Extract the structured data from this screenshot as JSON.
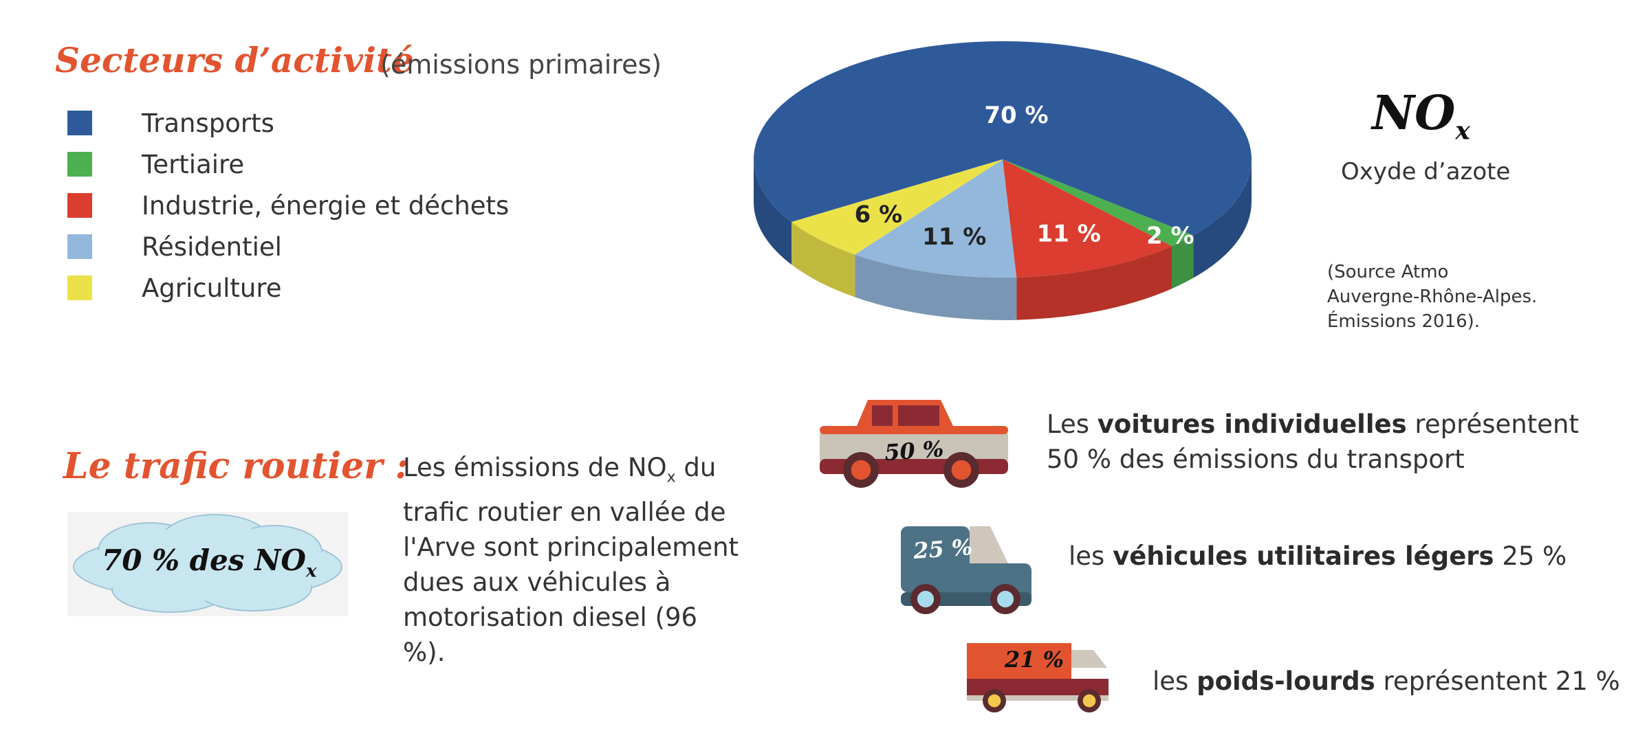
{
  "sectors": {
    "title": "Secteurs d’activité",
    "subtitle": "(émissions primaires)",
    "legend": [
      {
        "label": "Transports",
        "color": "#2f5a9a"
      },
      {
        "label": "Tertiaire",
        "color": "#4caf50"
      },
      {
        "label": "Industrie, énergie et déchets",
        "color": "#db3d30"
      },
      {
        "label": "Résidentiel",
        "color": "#93b8db"
      },
      {
        "label": "Agriculture",
        "color": "#ebe24a"
      }
    ]
  },
  "chart_data": {
    "type": "pie",
    "categories": [
      "Transports",
      "Tertiaire",
      "Industrie, énergie et déchets",
      "Résidentiel",
      "Agriculture"
    ],
    "values": [
      70,
      2,
      11,
      11,
      6
    ],
    "value_labels": [
      "70 %",
      "2 %",
      "11 %",
      "11 %",
      "6 %"
    ],
    "colors": [
      "#2f5a9a",
      "#4caf50",
      "#db3d30",
      "#93b8db",
      "#ebe24a"
    ],
    "style": "3d",
    "legend_position": "left"
  },
  "pollutant": {
    "symbol": "NO",
    "subscript": "x",
    "name": "Oxyde d’azote",
    "source_lines": [
      "(Source Atmo",
      "Auvergne-Rhône-Alpes.",
      "Émissions 2016)."
    ]
  },
  "traffic": {
    "title": "Le trafic routier :",
    "cloud_text": "70 % des NO",
    "cloud_sub": "x",
    "text_before": "Les émissions de NO",
    "text_sub": "x",
    "text_after": " du trafic routier en vallée de l'Arve sont principalement dues aux véhicules à motorisation diesel (96 %)."
  },
  "vehicles": [
    {
      "icon": "car-icon",
      "badge": "50 %",
      "before": "Les ",
      "bold": "voitures individuelles",
      "after": " représentent",
      "line2": "50 % des émissions du transport",
      "body": "#c9c3b8",
      "accent": "#e2542f"
    },
    {
      "icon": "van-icon",
      "badge": "25 %",
      "before": "les ",
      "bold": "véhicules utilitaires légers",
      "after": " 25 %",
      "body": "#4d7185",
      "accent": "#cfc7bb"
    },
    {
      "icon": "truck-icon",
      "badge": "21 %",
      "before": "les ",
      "bold": "poids-lourds",
      "after": " représentent 21 %",
      "body": "#e2542f",
      "accent": "#8b2a33"
    }
  ]
}
